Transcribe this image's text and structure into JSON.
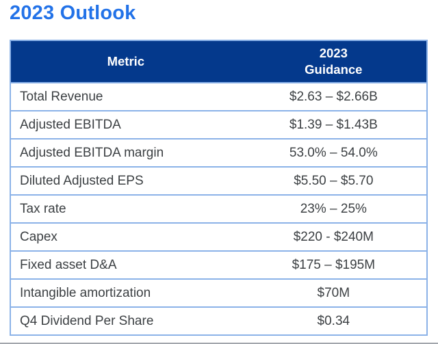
{
  "page": {
    "title": "2023 Outlook",
    "title_color": "#2272E8"
  },
  "colors": {
    "header_background": "#04398C",
    "header_text": "#FFFFFF",
    "table_border": "#8BB2E8",
    "body_text": "#3C4043",
    "bottom_divider": "#A2A6AC"
  },
  "table": {
    "header": {
      "metric_label": "Metric",
      "guidance_label": "2023\nGuidance"
    },
    "rows": [
      {
        "metric": "Total Revenue",
        "guidance": "$2.63 – $2.66B"
      },
      {
        "metric": "Adjusted EBITDA",
        "guidance": "$1.39 – $1.43B"
      },
      {
        "metric": "Adjusted EBITDA margin",
        "guidance": "53.0% – 54.0%"
      },
      {
        "metric": "Diluted Adjusted EPS",
        "guidance": "$5.50 – $5.70"
      },
      {
        "metric": "Tax rate",
        "guidance": "23% – 25%"
      },
      {
        "metric": "Capex",
        "guidance": "$220 - $240M"
      },
      {
        "metric": "Fixed asset D&A",
        "guidance": "$175 – $195M"
      },
      {
        "metric": "Intangible amortization",
        "guidance": "$70M"
      },
      {
        "metric": "Q4 Dividend Per Share",
        "guidance": "$0.34"
      }
    ]
  }
}
